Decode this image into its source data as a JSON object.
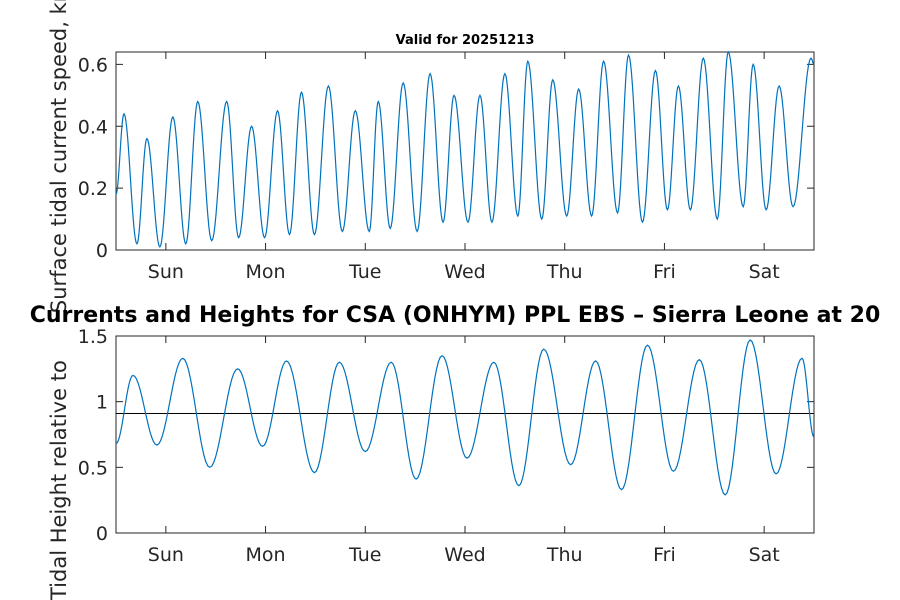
{
  "colors": {
    "series": "#0072bd",
    "reference_line": "#000000"
  },
  "chart_data": [
    {
      "type": "line",
      "title": "Valid for 20251213",
      "ylabel": "Surface tidal current speed, kn",
      "ylim": [
        0,
        0.64
      ],
      "yticks": [
        0,
        0.2,
        0.4,
        0.6
      ],
      "ytick_labels": [
        "0",
        "0.2",
        "0.4",
        "0.6"
      ],
      "xlim": [
        0,
        7
      ],
      "xticks": [
        0.5,
        1.5,
        2.5,
        3.5,
        4.5,
        5.5,
        6.5
      ],
      "xtick_labels": [
        "Sun",
        "Mon",
        "Tue",
        "Wed",
        "Thu",
        "Fri",
        "Sat"
      ],
      "extrema": [
        [
          0.0,
          0.18
        ],
        [
          0.08,
          0.44
        ],
        [
          0.21,
          0.02
        ],
        [
          0.31,
          0.36
        ],
        [
          0.44,
          0.01
        ],
        [
          0.57,
          0.43
        ],
        [
          0.7,
          0.02
        ],
        [
          0.82,
          0.48
        ],
        [
          0.96,
          0.03
        ],
        [
          1.11,
          0.48
        ],
        [
          1.23,
          0.04
        ],
        [
          1.36,
          0.4
        ],
        [
          1.49,
          0.04
        ],
        [
          1.62,
          0.45
        ],
        [
          1.74,
          0.05
        ],
        [
          1.86,
          0.51
        ],
        [
          1.99,
          0.05
        ],
        [
          2.13,
          0.53
        ],
        [
          2.27,
          0.06
        ],
        [
          2.4,
          0.45
        ],
        [
          2.54,
          0.06
        ],
        [
          2.63,
          0.48
        ],
        [
          2.75,
          0.07
        ],
        [
          2.88,
          0.54
        ],
        [
          3.02,
          0.06
        ],
        [
          3.15,
          0.57
        ],
        [
          3.28,
          0.09
        ],
        [
          3.39,
          0.5
        ],
        [
          3.53,
          0.09
        ],
        [
          3.65,
          0.5
        ],
        [
          3.77,
          0.09
        ],
        [
          3.9,
          0.57
        ],
        [
          4.03,
          0.11
        ],
        [
          4.13,
          0.61
        ],
        [
          4.27,
          0.1
        ],
        [
          4.38,
          0.55
        ],
        [
          4.52,
          0.11
        ],
        [
          4.64,
          0.52
        ],
        [
          4.77,
          0.11
        ],
        [
          4.89,
          0.61
        ],
        [
          5.03,
          0.12
        ],
        [
          5.14,
          0.63
        ],
        [
          5.28,
          0.09
        ],
        [
          5.41,
          0.58
        ],
        [
          5.53,
          0.13
        ],
        [
          5.64,
          0.53
        ],
        [
          5.76,
          0.13
        ],
        [
          5.89,
          0.62
        ],
        [
          6.03,
          0.1
        ],
        [
          6.14,
          0.64
        ],
        [
          6.29,
          0.14
        ],
        [
          6.39,
          0.6
        ],
        [
          6.52,
          0.13
        ],
        [
          6.65,
          0.53
        ],
        [
          6.79,
          0.14
        ],
        [
          6.97,
          0.62
        ],
        [
          7.0,
          0.6
        ]
      ]
    },
    {
      "type": "line",
      "title": "Currents and Heights for CSA (ONHYM) PPL EBS  – Sierra Leone at 20",
      "ylabel": "Tidal Height relative to",
      "ylim": [
        0,
        1.5
      ],
      "yticks": [
        0,
        0.5,
        1,
        1.5
      ],
      "ytick_labels": [
        "0",
        "0.5",
        "1",
        "1.5"
      ],
      "xlim": [
        0,
        7
      ],
      "xticks": [
        0.5,
        1.5,
        2.5,
        3.5,
        4.5,
        5.5,
        6.5
      ],
      "xtick_labels": [
        "Sun",
        "Mon",
        "Tue",
        "Wed",
        "Thu",
        "Fri",
        "Sat"
      ],
      "reference_line": 0.91,
      "extrema": [
        [
          0.0,
          0.68
        ],
        [
          0.17,
          1.2
        ],
        [
          0.41,
          0.67
        ],
        [
          0.67,
          1.33
        ],
        [
          0.94,
          0.5
        ],
        [
          1.22,
          1.25
        ],
        [
          1.47,
          0.66
        ],
        [
          1.71,
          1.31
        ],
        [
          1.99,
          0.46
        ],
        [
          2.24,
          1.3
        ],
        [
          2.5,
          0.62
        ],
        [
          2.76,
          1.3
        ],
        [
          3.01,
          0.41
        ],
        [
          3.27,
          1.35
        ],
        [
          3.52,
          0.57
        ],
        [
          3.79,
          1.3
        ],
        [
          4.04,
          0.36
        ],
        [
          4.29,
          1.4
        ],
        [
          4.56,
          0.52
        ],
        [
          4.81,
          1.31
        ],
        [
          5.07,
          0.33
        ],
        [
          5.33,
          1.43
        ],
        [
          5.59,
          0.47
        ],
        [
          5.85,
          1.32
        ],
        [
          6.11,
          0.29
        ],
        [
          6.36,
          1.47
        ],
        [
          6.62,
          0.45
        ],
        [
          6.88,
          1.33
        ],
        [
          7.0,
          0.73
        ]
      ]
    }
  ]
}
